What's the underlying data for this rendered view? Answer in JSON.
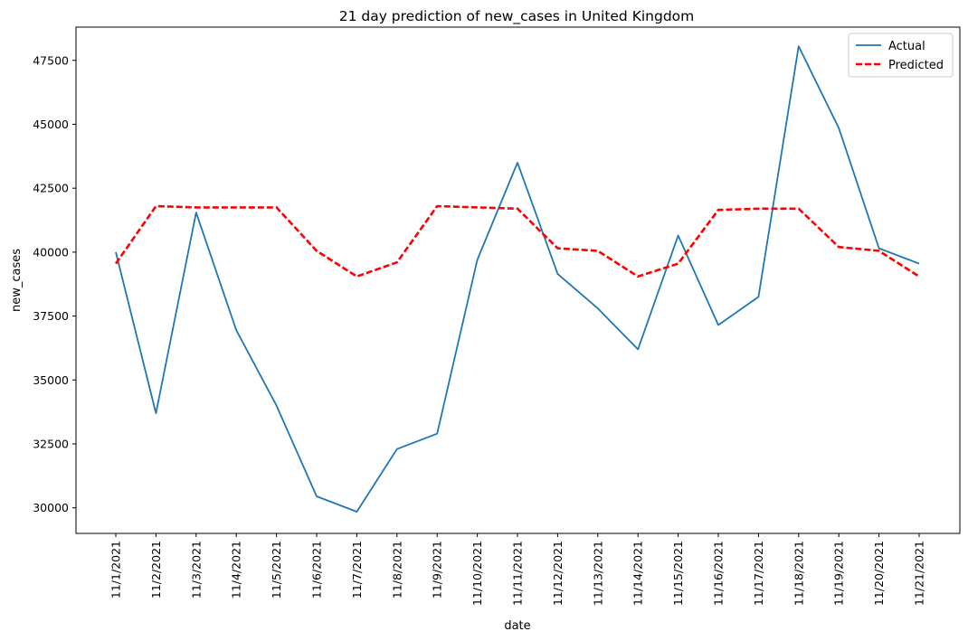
{
  "chart_data": {
    "type": "line",
    "title": "21 day prediction of new_cases in United Kingdom",
    "xlabel": "date",
    "ylabel": "new_cases",
    "ylim": [
      29000,
      48800
    ],
    "yticks": [
      30000,
      32500,
      35000,
      37500,
      40000,
      42500,
      45000,
      47500
    ],
    "categories": [
      "11/1/2021",
      "11/2/2021",
      "11/3/2021",
      "11/4/2021",
      "11/5/2021",
      "11/6/2021",
      "11/7/2021",
      "11/8/2021",
      "11/9/2021",
      "11/10/2021",
      "11/11/2021",
      "11/12/2021",
      "11/13/2021",
      "11/14/2021",
      "11/15/2021",
      "11/16/2021",
      "11/17/2021",
      "11/18/2021",
      "11/19/2021",
      "11/20/2021",
      "11/21/2021"
    ],
    "legend_position": "top-right",
    "grid": false,
    "series": [
      {
        "name": "Actual",
        "color": "#1f77b4",
        "style": "solid",
        "values": [
          40000,
          33700,
          41550,
          36950,
          34000,
          30450,
          29850,
          32300,
          32900,
          39700,
          43500,
          39150,
          37800,
          36200,
          40650,
          37150,
          38250,
          48050,
          44850,
          40150,
          39550
        ]
      },
      {
        "name": "Predicted",
        "color": "#ff0000",
        "style": "dashed",
        "values": [
          39550,
          41800,
          41750,
          41750,
          41750,
          40050,
          39050,
          39600,
          41800,
          41750,
          41700,
          40150,
          40050,
          39050,
          39550,
          41650,
          41700,
          41700,
          40200,
          40050,
          39050
        ]
      }
    ]
  }
}
